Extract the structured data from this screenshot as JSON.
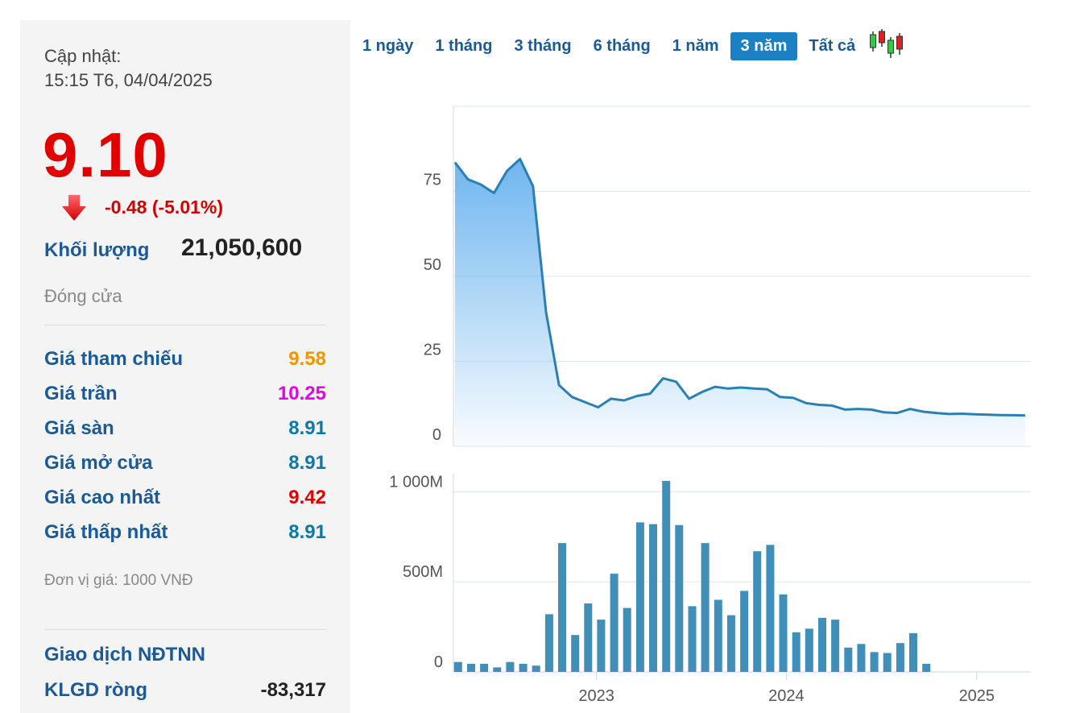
{
  "updated": {
    "label": "Cập nhật:",
    "time": "15:15 T6, 04/04/2025"
  },
  "price": "9.10",
  "change": "-0.48 (-5.01%)",
  "volume": {
    "label": "Khối lượng",
    "value": "21,050,600"
  },
  "status": "Đóng cửa",
  "stats": [
    {
      "label": "Giá tham chiếu",
      "value": "9.58",
      "color": "#f29400"
    },
    {
      "label": "Giá trần",
      "value": "10.25",
      "color": "#e600e6"
    },
    {
      "label": "Giá sàn",
      "value": "8.91",
      "color": "#0a7aa8"
    },
    {
      "label": "Giá mở cửa",
      "value": "8.91",
      "color": "#0a7aa8"
    },
    {
      "label": "Giá cao nhất",
      "value": "9.42",
      "color": "#e00000"
    },
    {
      "label": "Giá thấp nhất",
      "value": "8.91",
      "color": "#0a7aa8"
    }
  ],
  "unit": "Đơn vị giá: 1000 VNĐ",
  "foreign": {
    "title": "Giao dịch NĐTNN",
    "net_label": "KLGD ròng",
    "net_value": "-83,317"
  },
  "tabs": [
    {
      "label": "1 ngày",
      "active": false
    },
    {
      "label": "1 tháng",
      "active": false
    },
    {
      "label": "3 tháng",
      "active": false
    },
    {
      "label": "6 tháng",
      "active": false
    },
    {
      "label": "1 năm",
      "active": false
    },
    {
      "label": "3 năm",
      "active": true
    },
    {
      "label": "Tất cả",
      "active": false
    }
  ],
  "colors": {
    "up": "#e00000",
    "down": "#d40000",
    "line": "#2a7fb5",
    "bar": "#3f8fb8",
    "candle_green": "#2ecc40",
    "candle_red": "#e02020"
  },
  "chart_data": [
    {
      "type": "area",
      "name": "price",
      "x_axis": {
        "type": "date",
        "range": [
          "2022-04-01",
          "2025-04-15"
        ],
        "ticks": [
          "2023",
          "2024",
          "2025"
        ]
      },
      "y_axis": {
        "range": [
          0,
          100
        ],
        "ticks": [
          0,
          25,
          50,
          75
        ]
      },
      "grid": true,
      "x": [
        "2022-04-04",
        "2022-04-29",
        "2022-05-24",
        "2022-06-18",
        "2022-07-13",
        "2022-08-07",
        "2022-09-01",
        "2022-09-26",
        "2022-10-21",
        "2022-11-15",
        "2022-12-10",
        "2023-01-04",
        "2023-01-29",
        "2023-02-23",
        "2023-03-20",
        "2023-04-14",
        "2023-05-09",
        "2023-06-03",
        "2023-06-28",
        "2023-07-23",
        "2023-08-17",
        "2023-09-11",
        "2023-10-06",
        "2023-10-31",
        "2023-11-25",
        "2023-12-20",
        "2024-01-14",
        "2024-02-08",
        "2024-03-04",
        "2024-03-29",
        "2024-04-23",
        "2024-05-18",
        "2024-06-12",
        "2024-07-07",
        "2024-08-01",
        "2024-08-26",
        "2024-09-20",
        "2024-10-15",
        "2024-11-09",
        "2024-12-04",
        "2024-12-29",
        "2025-01-23",
        "2025-02-17",
        "2025-03-14",
        "2025-04-04"
      ],
      "values": [
        83.5,
        78.5,
        77,
        74.5,
        81,
        84.5,
        76.5,
        39.5,
        18,
        14.5,
        13,
        11.5,
        14,
        13.5,
        14.8,
        15.5,
        20,
        19,
        14,
        16,
        17.5,
        17,
        17.3,
        17,
        16.8,
        14.5,
        14.3,
        12.7,
        12.2,
        12,
        10.8,
        11,
        10.8,
        10,
        9.8,
        11,
        10.2,
        9.8,
        9.5,
        9.6,
        9.4,
        9.3,
        9.2,
        9.15,
        9.1
      ]
    },
    {
      "type": "bar",
      "name": "volume",
      "x_axis": {
        "type": "date",
        "range": [
          "2022-04-01",
          "2025-04-15"
        ],
        "ticks": [
          "2023",
          "2024",
          "2025"
        ]
      },
      "y_axis": {
        "range": [
          0,
          1100
        ],
        "ticks": [
          "0",
          "500M",
          "1 000M"
        ],
        "unit": "M"
      },
      "grid": true,
      "x": [
        "2022-04-10",
        "2022-05-05",
        "2022-05-30",
        "2022-06-24",
        "2022-07-19",
        "2022-08-13",
        "2022-09-07",
        "2022-10-02",
        "2022-10-27",
        "2022-11-21",
        "2022-12-16",
        "2023-01-10",
        "2023-02-04",
        "2023-03-01",
        "2023-03-26",
        "2023-04-20",
        "2023-05-15",
        "2023-06-09",
        "2023-07-04",
        "2023-07-29",
        "2023-08-23",
        "2023-09-17",
        "2023-10-12",
        "2023-11-06",
        "2023-12-01",
        "2023-12-26",
        "2024-01-20",
        "2024-02-14",
        "2024-03-10",
        "2024-04-04",
        "2024-04-29",
        "2024-05-24",
        "2024-06-18",
        "2024-07-13",
        "2024-08-07",
        "2024-09-01",
        "2024-09-26",
        "2024-10-21",
        "2024-11-15",
        "2024-12-10",
        "2025-01-04",
        "2025-01-29",
        "2025-02-23",
        "2025-03-20",
        "2025-04-04"
      ],
      "values": [
        55,
        45,
        45,
        25,
        55,
        45,
        35,
        320,
        715,
        205,
        380,
        290,
        545,
        355,
        830,
        820,
        1060,
        815,
        365,
        715,
        400,
        315,
        450,
        670,
        705,
        430,
        220,
        240,
        300,
        290,
        135,
        155,
        110,
        105,
        160,
        215,
        45,
        0,
        0,
        0,
        0,
        0,
        0,
        0,
        0
      ]
    }
  ]
}
